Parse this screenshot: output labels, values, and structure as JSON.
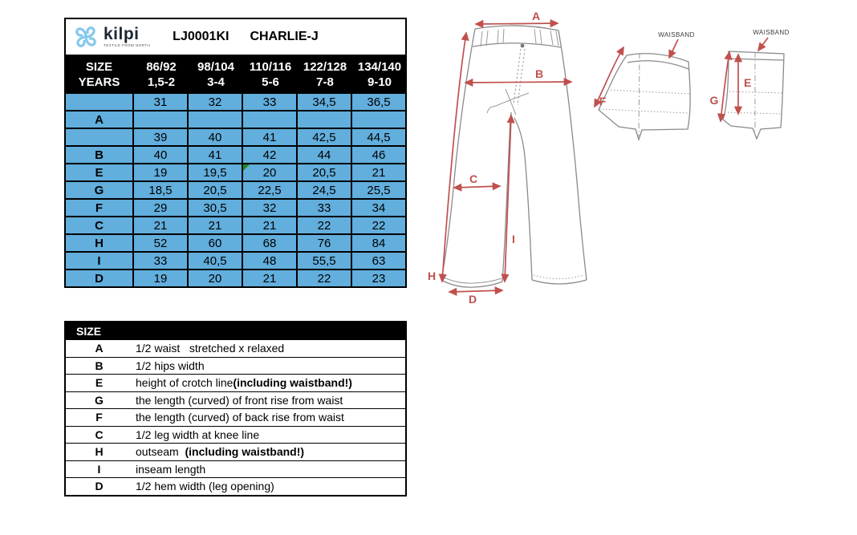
{
  "header": {
    "product_code": "LJ0001KI",
    "product_name": "CHARLIE-J"
  },
  "logo": {
    "brand": "kilpi",
    "tagline": "TEXTILE FROM NORTH"
  },
  "size_table": {
    "corner": [
      "SIZE",
      "YEARS"
    ],
    "columns": [
      {
        "size": "86/92",
        "years": "1,5-2"
      },
      {
        "size": "98/104",
        "years": "3-4"
      },
      {
        "size": "110/116",
        "years": "5-6"
      },
      {
        "size": "122/128",
        "years": "7-8"
      },
      {
        "size": "134/140",
        "years": "9-10"
      }
    ],
    "rows": [
      {
        "label": "",
        "values": [
          "31",
          "32",
          "33",
          "34,5",
          "36,5"
        ]
      },
      {
        "label": "A",
        "values": [
          "",
          "",
          "",
          "",
          ""
        ]
      },
      {
        "label": "",
        "values": [
          "39",
          "40",
          "41",
          "42,5",
          "44,5"
        ]
      },
      {
        "label": "B",
        "values": [
          "40",
          "41",
          "42",
          "44",
          "46"
        ]
      },
      {
        "label": "E",
        "values": [
          "19",
          "19,5",
          "20",
          "20,5",
          "21"
        ]
      },
      {
        "label": "G",
        "values": [
          "18,5",
          "20,5",
          "22,5",
          "24,5",
          "25,5"
        ]
      },
      {
        "label": "F",
        "values": [
          "29",
          "30,5",
          "32",
          "33",
          "34"
        ]
      },
      {
        "label": "C",
        "values": [
          "21",
          "21",
          "21",
          "22",
          "22"
        ]
      },
      {
        "label": "H",
        "values": [
          "52",
          "60",
          "68",
          "76",
          "84"
        ]
      },
      {
        "label": "I",
        "values": [
          "33",
          "40,5",
          "48",
          "55,5",
          "63"
        ]
      },
      {
        "label": "D",
        "values": [
          "19",
          "20",
          "21",
          "22",
          "23"
        ]
      }
    ],
    "comment_marker": {
      "row_index": 4,
      "col_index": 2
    }
  },
  "legend": {
    "header": "SIZE",
    "rows": [
      {
        "letter": "A",
        "text": "1/2 waist   stretched x relaxed",
        "bold": ""
      },
      {
        "letter": "B",
        "text": "1/2 hips width",
        "bold": ""
      },
      {
        "letter": "E",
        "text": "height of crotch line",
        "bold": "(including waistband!)"
      },
      {
        "letter": "G",
        "text": "the length (curved) of front rise from waist",
        "bold": ""
      },
      {
        "letter": "F",
        "text": "the length (curved) of back rise from waist",
        "bold": ""
      },
      {
        "letter": "C",
        "text": "1/2 leg width at knee line",
        "bold": ""
      },
      {
        "letter": "H",
        "text": "outseam  ",
        "bold": "(including waistband!)"
      },
      {
        "letter": "I",
        "text": "inseam length",
        "bold": ""
      },
      {
        "letter": "D",
        "text": "1/2 hem width (leg opening)",
        "bold": ""
      }
    ]
  },
  "diagram": {
    "labels": {
      "a": "A",
      "b": "B",
      "c": "C",
      "d": "D",
      "e": "E",
      "f": "F",
      "g": "G",
      "h": "H",
      "i": "I"
    },
    "waistband_left": "WAISBAND",
    "waistband_right": "WAISBAND"
  },
  "colors": {
    "cell_blue": "#62AEDD",
    "arrow_red": "#C0504D",
    "marker_green": "#1F8A1F",
    "logo_blue": "#85C8EC",
    "header_black": "#000000"
  }
}
